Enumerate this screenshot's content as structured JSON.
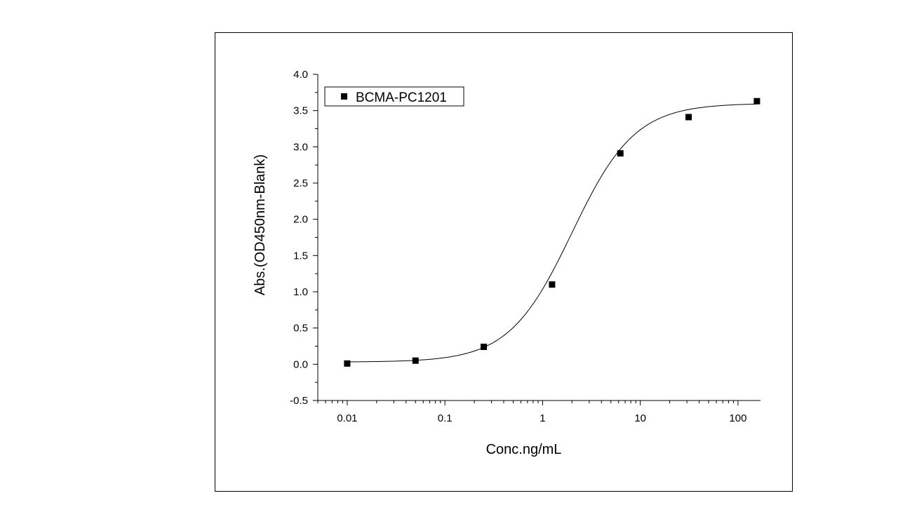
{
  "chart_data": {
    "type": "scatter",
    "xlabel": "Conc.ng/mL",
    "ylabel": "Abs.(OD450nm-Blank)",
    "xscale": "log",
    "xlim": [
      0.005,
      170
    ],
    "ylim": [
      -0.5,
      4.0
    ],
    "xticks": [
      0.01,
      0.1,
      1,
      10,
      100
    ],
    "xtick_labels": [
      "0.01",
      "0.1",
      "1",
      "10",
      "100"
    ],
    "yticks": [
      -0.5,
      0.0,
      0.5,
      1.0,
      1.5,
      2.0,
      2.5,
      3.0,
      3.5,
      4.0
    ],
    "ytick_labels": [
      "-0.5",
      "0.0",
      "0.5",
      "1.0",
      "1.5",
      "2.0",
      "2.5",
      "3.0",
      "3.5",
      "4.0"
    ],
    "grid": false,
    "legend": {
      "placement": "top-left",
      "entries": [
        "BCMA-PC1201"
      ]
    },
    "series": [
      {
        "name": "BCMA-PC1201",
        "marker": "square",
        "color": "#000000",
        "x": [
          0.01,
          0.05,
          0.25,
          1.25,
          6.25,
          31.25,
          156.25
        ],
        "y": [
          0.01,
          0.05,
          0.24,
          1.1,
          2.91,
          3.41,
          3.63
        ]
      }
    ],
    "fit": {
      "type": "sigmoidal",
      "color": "#000000",
      "x_range": [
        0.01,
        156.25
      ],
      "bottom": 0.03,
      "top": 3.6,
      "ec50": 2.0,
      "hill": 1.35
    }
  }
}
